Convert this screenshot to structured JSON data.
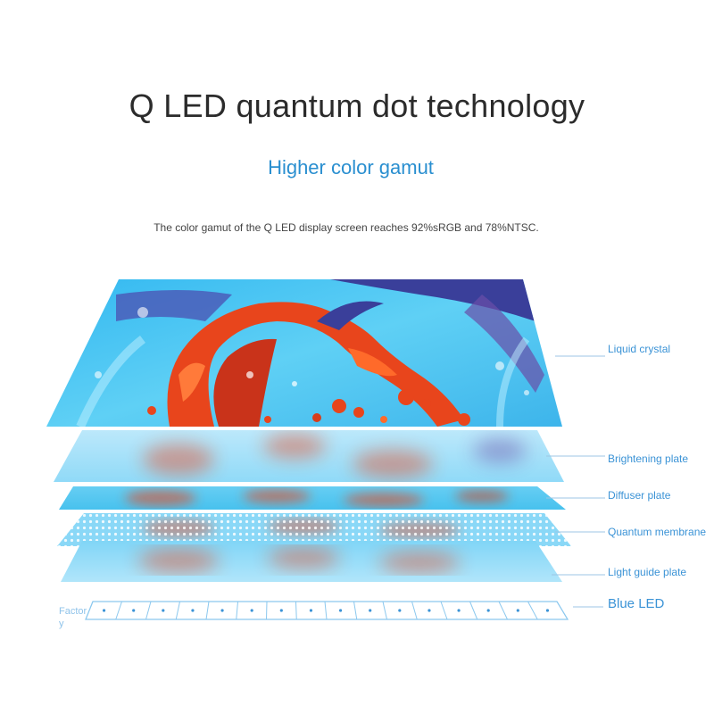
{
  "header": {
    "title": "Q LED quantum dot technology",
    "subtitle": "Higher color gamut",
    "description": "The color gamut of the Q LED display screen reaches 92%sRGB and 78%NTSC."
  },
  "layers": [
    {
      "label": "Liquid crystal"
    },
    {
      "label": "Brightening plate"
    },
    {
      "label": "Diffuser plate"
    },
    {
      "label": "Quantum membrane"
    },
    {
      "label": "Light guide plate"
    },
    {
      "label": "Blue LED"
    }
  ],
  "footer": {
    "factory_line1": "Factor",
    "factory_line2": "y"
  },
  "colors": {
    "accent_blue": "#3b93d6",
    "lcd_cyan": "#37b8ee",
    "lcd_red": "#e8451c",
    "lcd_navy": "#3a3f9a"
  }
}
